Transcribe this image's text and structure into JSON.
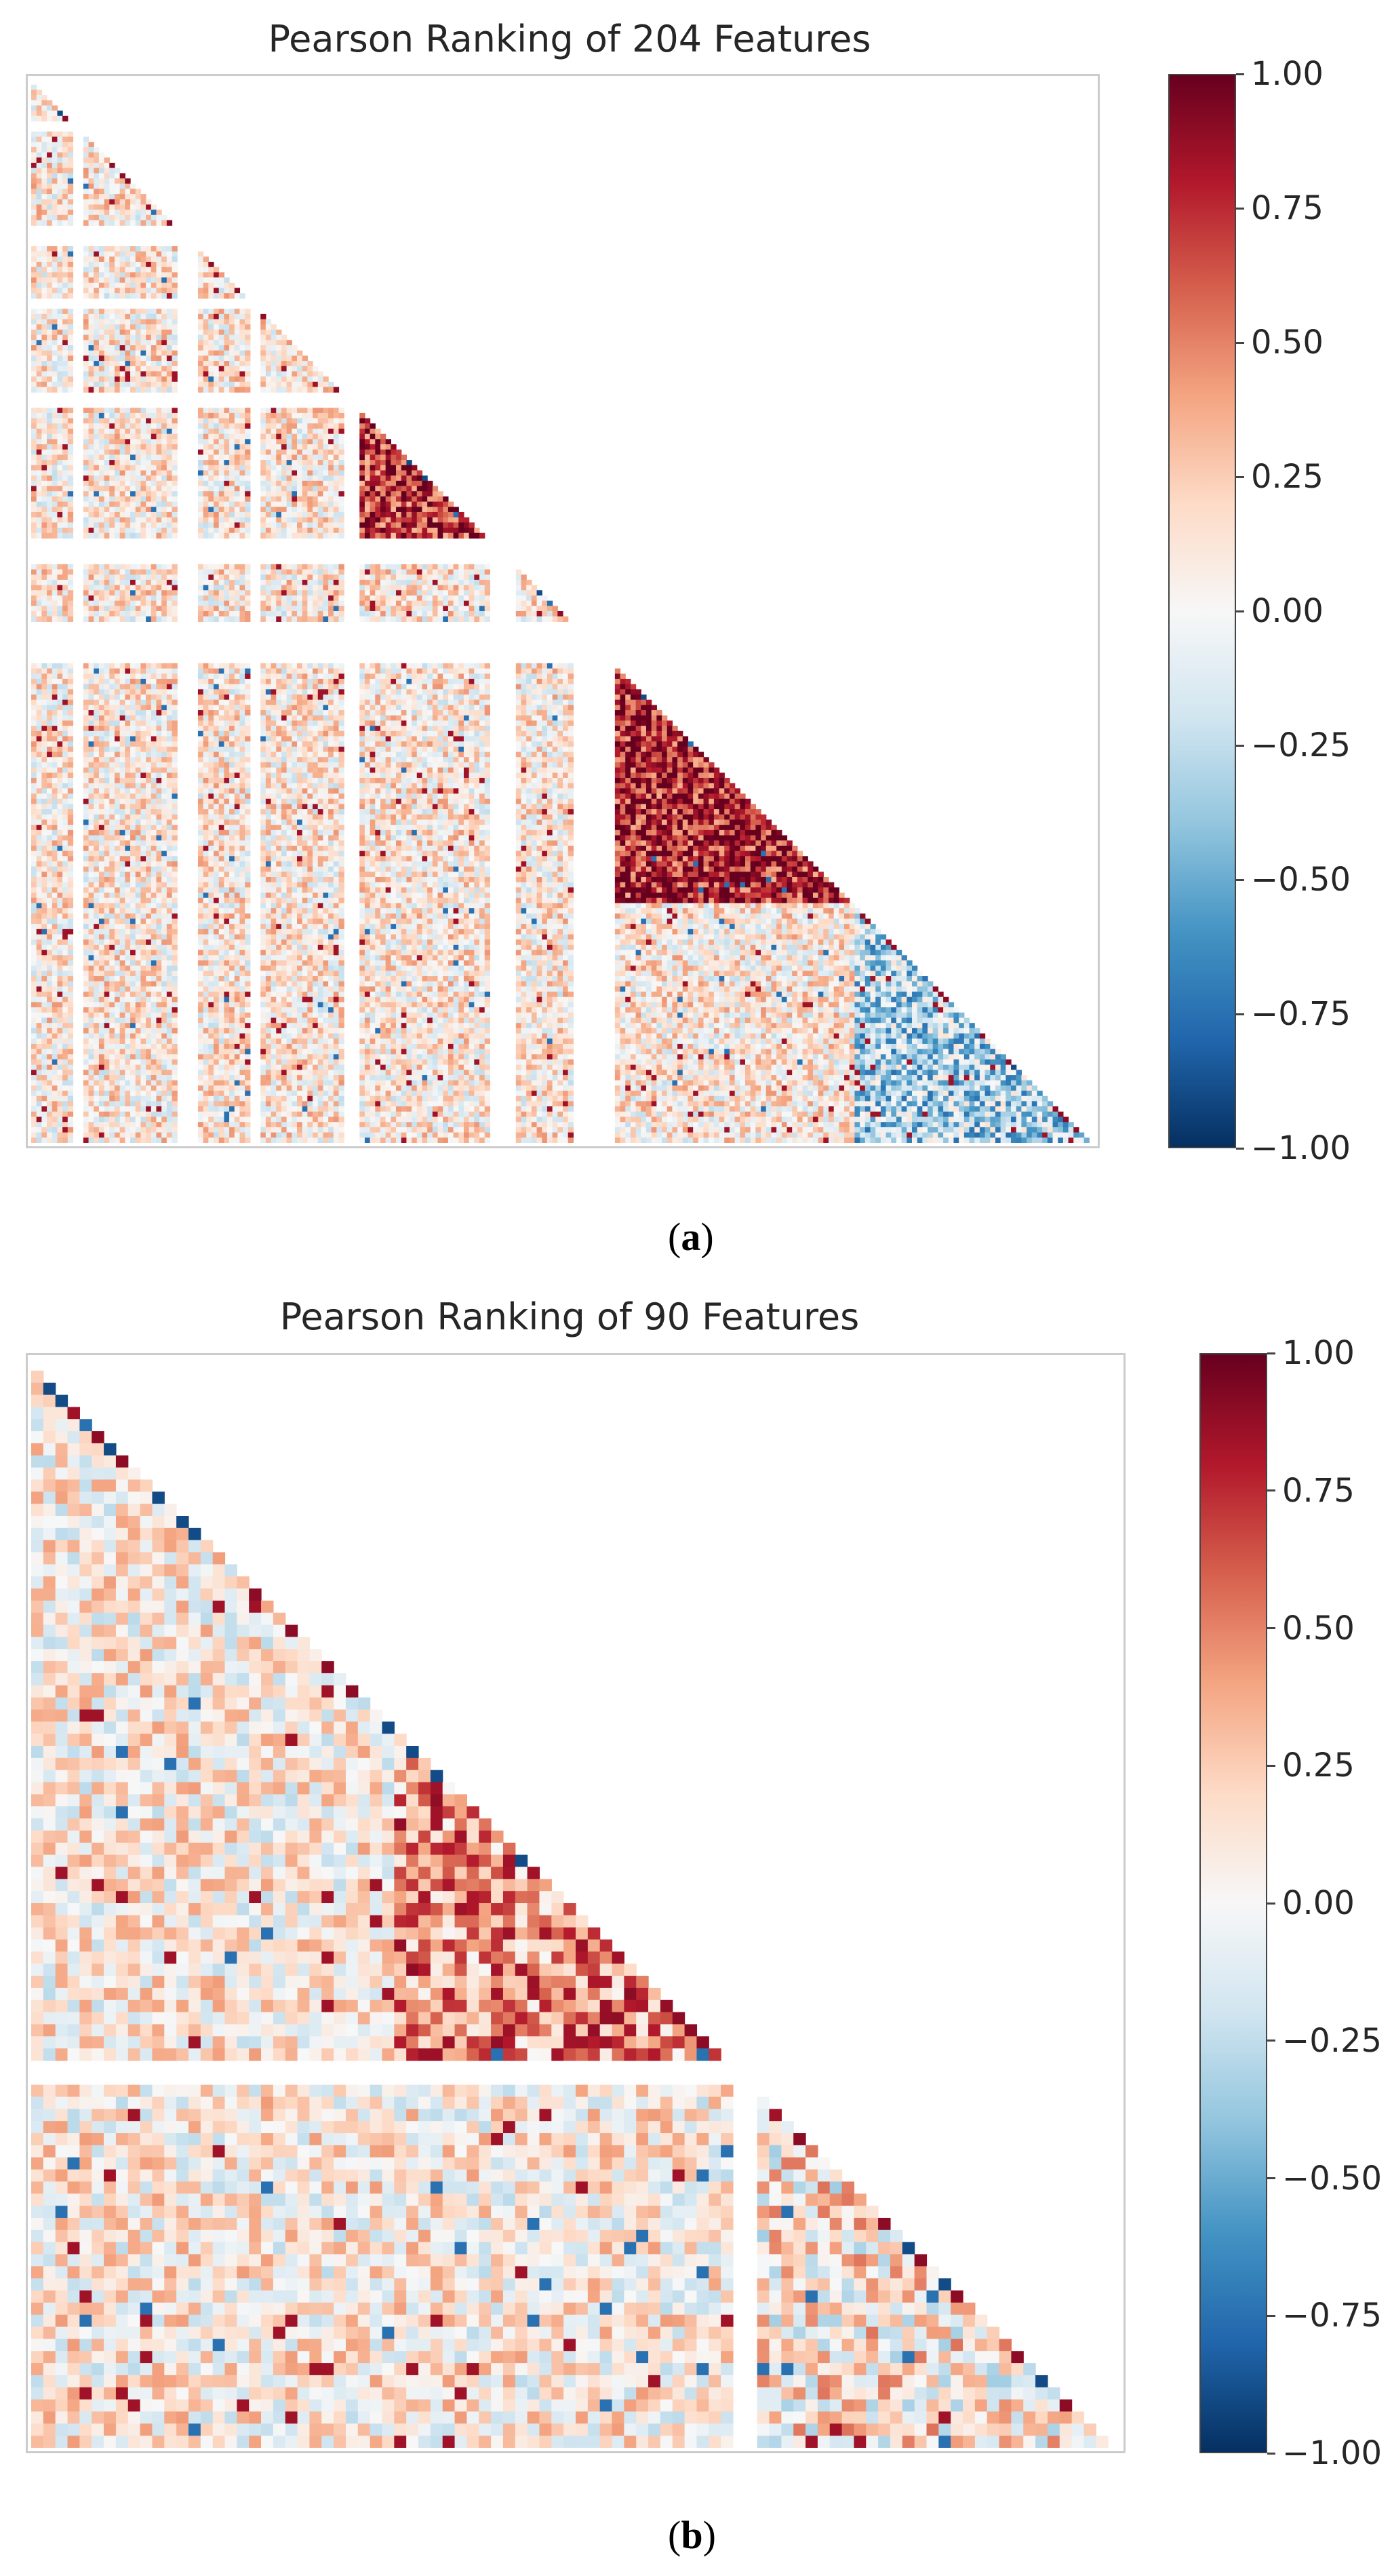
{
  "colormap": {
    "name": "RdBu_r",
    "stops": [
      "#053061",
      "#2166ac",
      "#4393c3",
      "#92c5de",
      "#d1e5f0",
      "#f7f7f7",
      "#fddbc7",
      "#f4a582",
      "#d6604d",
      "#b2182b",
      "#67001f"
    ]
  },
  "chart_data": [
    {
      "type": "heatmap",
      "panel": "a",
      "title": "Pearson Ranking of 204 Features",
      "n_features": 204,
      "mask": "lower-triangle",
      "vmin": -1.0,
      "vmax": 1.0,
      "colorbar_ticks": [
        "1.00",
        "0.75",
        "0.50",
        "0.25",
        "0.00",
        "−0.25",
        "−0.50",
        "−0.75",
        "−1.00"
      ],
      "caption_label": "a",
      "blank_feature_ranges": [
        [
          8,
          10
        ],
        [
          28,
          32
        ],
        [
          42,
          44
        ],
        [
          60,
          63
        ],
        [
          88,
          93
        ],
        [
          104,
          112
        ]
      ],
      "value_summary": {
        "diagonal_blocks": [
          {
            "range": [
              60,
              93
            ],
            "mean": 0.75
          },
          {
            "range": [
              112,
              158
            ],
            "mean": 0.8
          },
          {
            "range": [
              158,
              204
            ],
            "mean": -0.3
          }
        ],
        "background_mean": 0.1
      }
    },
    {
      "type": "heatmap",
      "panel": "b",
      "title": "Pearson Ranking of 90 Features",
      "n_features": 90,
      "mask": "lower-triangle",
      "vmin": -1.0,
      "vmax": 1.0,
      "colorbar_ticks": [
        "1.00",
        "0.75",
        "0.50",
        "0.25",
        "0.00",
        "−0.25",
        "−0.50",
        "−0.75",
        "−1.00"
      ],
      "caption_label": "b",
      "blank_feature_ranges": [
        [
          58,
          60
        ]
      ],
      "value_summary": {
        "diagonal_blocks": [
          {
            "range": [
              30,
              58
            ],
            "mean": 0.45
          },
          {
            "range": [
              60,
              90
            ],
            "mean": 0.1
          }
        ],
        "background_mean": 0.08
      }
    }
  ]
}
